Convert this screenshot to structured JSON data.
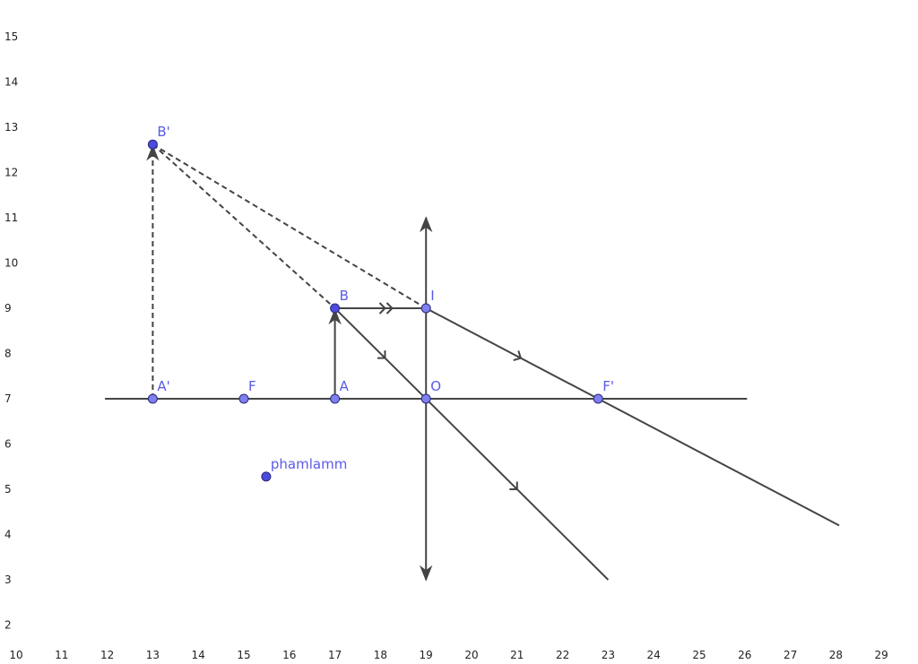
{
  "axes": {
    "xticks": [
      10,
      11,
      12,
      13,
      14,
      15,
      16,
      17,
      18,
      19,
      20,
      21,
      22,
      23,
      24,
      25,
      26,
      27,
      28,
      29
    ],
    "yticks": [
      2,
      3,
      4,
      5,
      6,
      7,
      8,
      9,
      10,
      11,
      12,
      13,
      14,
      15
    ]
  },
  "points": [
    {
      "label": "A'",
      "x": 13,
      "y": 7
    },
    {
      "label": "F",
      "x": 15,
      "y": 7
    },
    {
      "label": "A",
      "x": 17,
      "y": 7
    },
    {
      "label": "O",
      "x": 19,
      "y": 7
    },
    {
      "label": "F'",
      "x": 22.78,
      "y": 7
    },
    {
      "label": "B",
      "x": 17,
      "y": 9
    },
    {
      "label": "I",
      "x": 19,
      "y": 9
    },
    {
      "label": "B'",
      "x": 13,
      "y": 12.62
    },
    {
      "label": "phamlamm",
      "x": 15.49,
      "y": 5.28
    }
  ]
}
